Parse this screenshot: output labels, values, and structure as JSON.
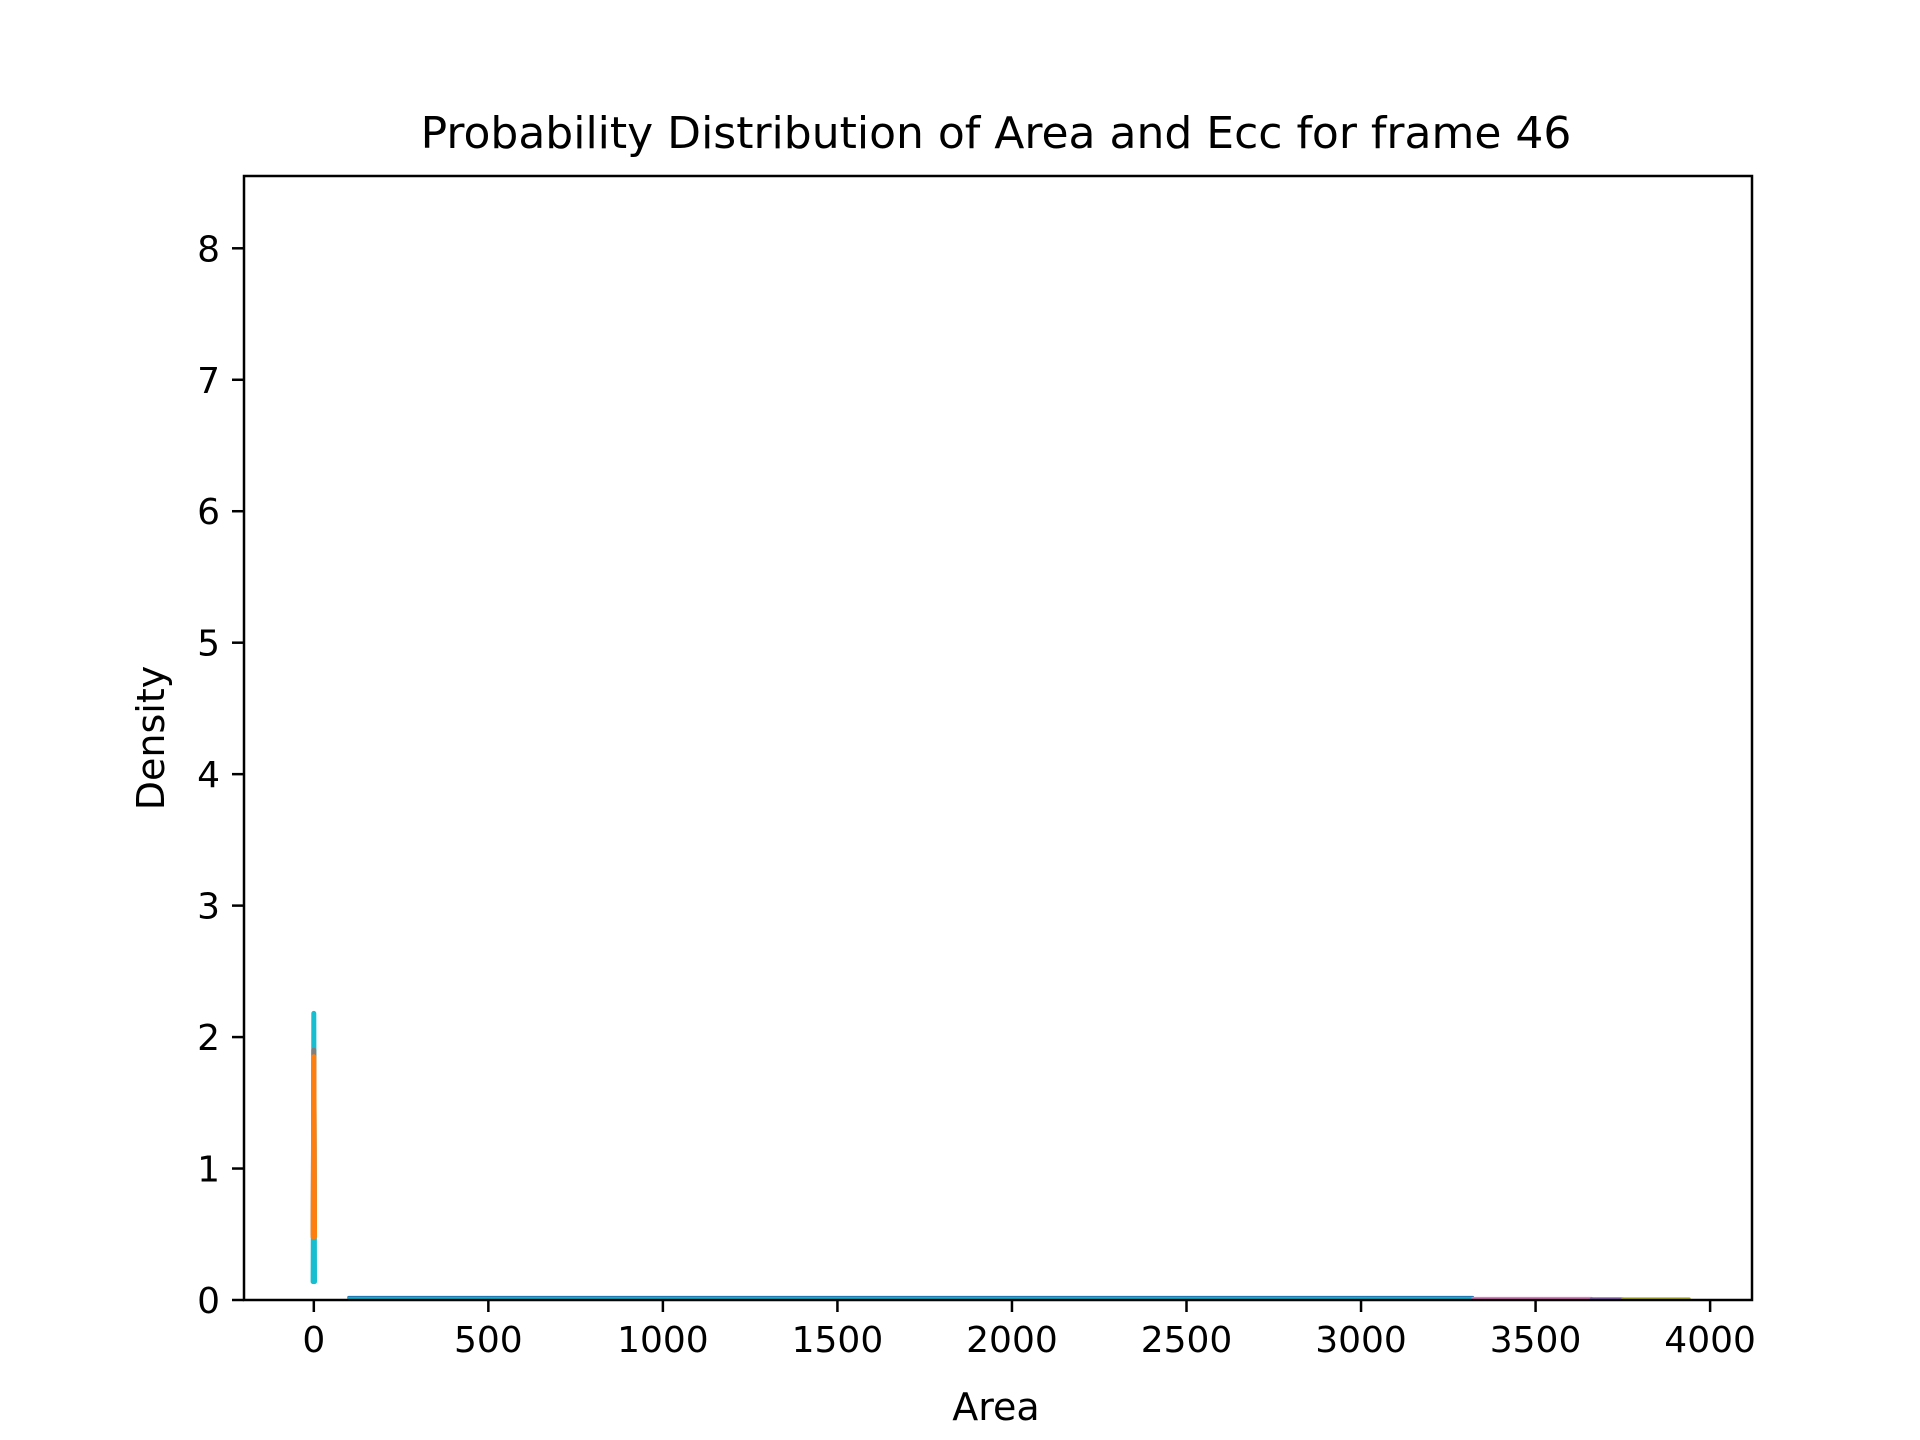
{
  "chart_data": {
    "type": "line",
    "title": "Probability Distribution of Area and Ecc for frame 46",
    "xlabel": "Area",
    "ylabel": "Density",
    "xlim": [
      -200,
      4120
    ],
    "ylim": [
      0,
      8.55
    ],
    "xticks": [
      0,
      500,
      1000,
      1500,
      2000,
      2500,
      3000,
      3500,
      4000
    ],
    "yticks": [
      0,
      1,
      2,
      3,
      4,
      5,
      6,
      7,
      8
    ],
    "grid": false,
    "legend": "none",
    "series": [
      {
        "color": "#17becf",
        "x": [
          -2,
          -1,
          0,
          1,
          2
        ],
        "y": [
          0.14,
          0.9,
          2.18,
          0.9,
          0.14
        ]
      },
      {
        "color": "#7f7f7f",
        "x": [
          -2,
          -1,
          0,
          1,
          2
        ],
        "y": [
          0.5,
          1.2,
          1.9,
          1.2,
          0.5
        ]
      },
      {
        "color": "#ff7f0e",
        "x": [
          -2,
          -1,
          0,
          1,
          2
        ],
        "y": [
          0.48,
          1.1,
          1.85,
          1.1,
          0.48
        ]
      },
      {
        "color": "#1f77b4",
        "x": [
          100,
          1000,
          2000,
          3000,
          3320
        ],
        "y": [
          0.02,
          0.02,
          0.02,
          0.02,
          0.02
        ]
      },
      {
        "color": "#17becf",
        "x": [
          100,
          1000,
          2000,
          3000,
          3320
        ],
        "y": [
          0.01,
          0.01,
          0.01,
          0.01,
          0.01
        ]
      },
      {
        "color": "#e377c2",
        "x": [
          3320,
          3500,
          3660
        ],
        "y": [
          0.012,
          0.012,
          0.012
        ]
      },
      {
        "color": "#9467bd",
        "x": [
          3660,
          3750
        ],
        "y": [
          0.01,
          0.01
        ]
      },
      {
        "color": "#bcbd22",
        "x": [
          3750,
          3940
        ],
        "y": [
          0.01,
          0.01
        ]
      }
    ]
  }
}
